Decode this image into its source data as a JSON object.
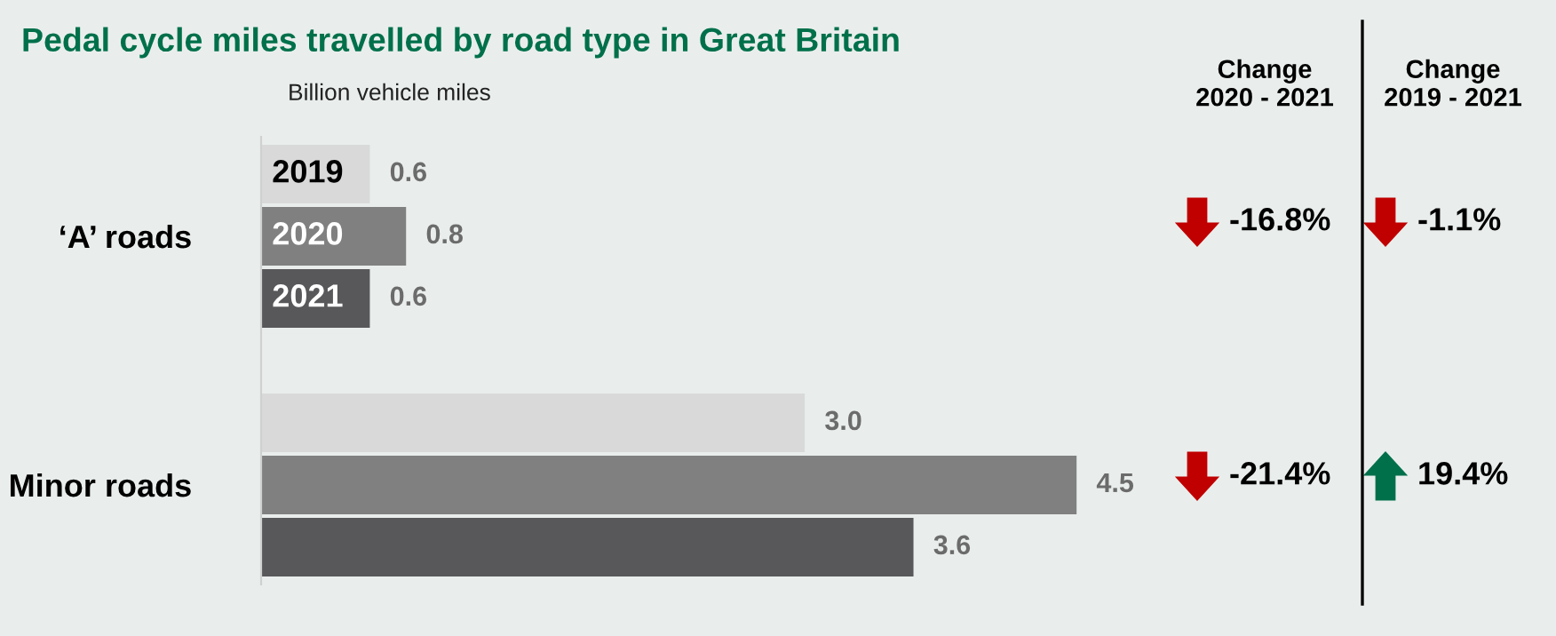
{
  "chart_data": {
    "type": "bar",
    "orientation": "horizontal",
    "title": "Pedal cycle miles travelled by road type in Great Britain",
    "subtitle": "Billion vehicle miles",
    "categories": [
      "‘A’ roads",
      "Minor roads"
    ],
    "series": [
      {
        "name": "2019",
        "color": "#d9d9d9",
        "values": [
          0.6,
          3.0
        ],
        "value_labels": [
          "0.6",
          "3.0"
        ]
      },
      {
        "name": "2020",
        "color": "#808080",
        "values": [
          0.8,
          4.5
        ],
        "value_labels": [
          "0.8",
          "4.5"
        ]
      },
      {
        "name": "2021",
        "color": "#58585b",
        "values": [
          0.6,
          3.6
        ],
        "value_labels": [
          "0.6",
          "3.6"
        ]
      }
    ],
    "grid": false,
    "legend": false,
    "annotations": [
      "Change\n2020 - 2021",
      "Change\n2019 - 2021",
      "-16.8%",
      "-1.1%",
      "-21.4%",
      "19.4%"
    ]
  }
}
